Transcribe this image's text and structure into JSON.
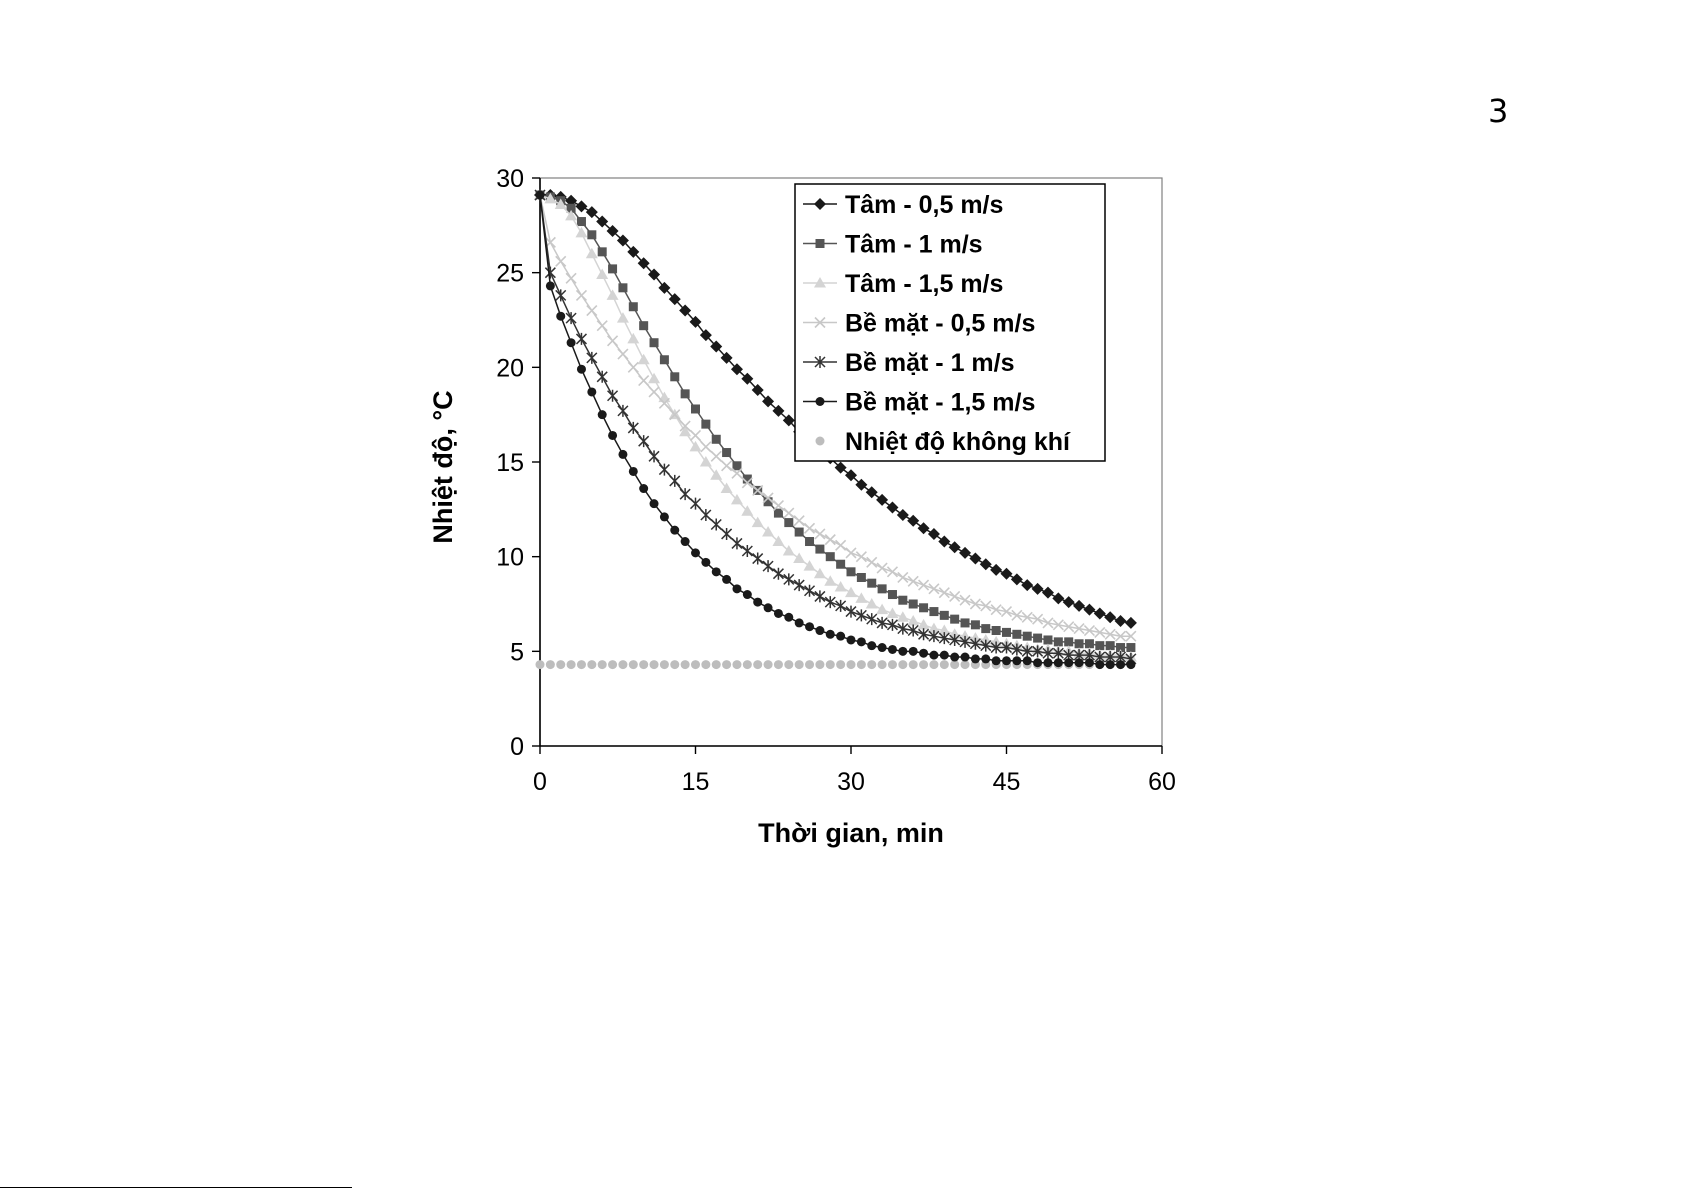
{
  "page": {
    "page_number": "3"
  },
  "chart_data": {
    "type": "line",
    "title": "",
    "xlabel": "Thời gian, min",
    "ylabel": "Nhiệt độ, °C",
    "xlim": [
      0,
      60
    ],
    "ylim": [
      0,
      30
    ],
    "x_ticks": [
      "0",
      "15",
      "30",
      "45",
      "60"
    ],
    "y_ticks": [
      "0",
      "5",
      "10",
      "15",
      "20",
      "25",
      "30"
    ],
    "grid": false,
    "legend_position": "top-right",
    "x_step": 1,
    "series": [
      {
        "name": "Tâm - 0,5 m/s",
        "marker": "diamond",
        "color": "#1a1a1a",
        "values": [
          29.1,
          29.1,
          29.0,
          28.8,
          28.5,
          28.2,
          27.7,
          27.2,
          26.7,
          26.1,
          25.5,
          24.9,
          24.2,
          23.6,
          23.0,
          22.4,
          21.7,
          21.1,
          20.5,
          19.9,
          19.4,
          18.8,
          18.2,
          17.7,
          17.2,
          16.6,
          16.1,
          15.7,
          15.2,
          14.7,
          14.3,
          13.8,
          13.4,
          13.0,
          12.6,
          12.2,
          11.9,
          11.5,
          11.2,
          10.8,
          10.5,
          10.2,
          9.9,
          9.6,
          9.3,
          9.1,
          8.8,
          8.5,
          8.3,
          8.1,
          7.8,
          7.6,
          7.4,
          7.2,
          7.0,
          6.8,
          6.6,
          6.5
        ]
      },
      {
        "name": "Tâm - 1 m/s",
        "marker": "square",
        "color": "#555555",
        "values": [
          29.1,
          29.0,
          28.8,
          28.4,
          27.7,
          27.0,
          26.1,
          25.2,
          24.2,
          23.2,
          22.2,
          21.3,
          20.4,
          19.5,
          18.6,
          17.8,
          17.0,
          16.2,
          15.5,
          14.8,
          14.1,
          13.5,
          12.9,
          12.3,
          11.8,
          11.3,
          10.8,
          10.4,
          10.0,
          9.6,
          9.2,
          8.9,
          8.6,
          8.3,
          8.0,
          7.7,
          7.5,
          7.3,
          7.1,
          6.9,
          6.7,
          6.5,
          6.4,
          6.2,
          6.1,
          6.0,
          5.9,
          5.8,
          5.7,
          5.6,
          5.5,
          5.5,
          5.4,
          5.4,
          5.3,
          5.3,
          5.2,
          5.2
        ]
      },
      {
        "name": "Tâm - 1,5 m/s",
        "marker": "triangle",
        "color": "#d4d4d4",
        "values": [
          29.1,
          28.9,
          28.6,
          28.0,
          27.1,
          26.0,
          24.9,
          23.8,
          22.6,
          21.5,
          20.4,
          19.4,
          18.4,
          17.5,
          16.6,
          15.8,
          15.0,
          14.3,
          13.6,
          13.0,
          12.4,
          11.8,
          11.3,
          10.8,
          10.3,
          9.9,
          9.5,
          9.1,
          8.7,
          8.4,
          8.1,
          7.8,
          7.5,
          7.2,
          7.0,
          6.8,
          6.6,
          6.4,
          6.2,
          6.1,
          5.9,
          5.8,
          5.7,
          5.6,
          5.5,
          5.4,
          5.3,
          5.2,
          5.1,
          5.1,
          5.0,
          5.0,
          4.9,
          4.9,
          4.8,
          4.8,
          4.8,
          4.7
        ]
      },
      {
        "name": "Bề mặt - 0,5 m/s",
        "marker": "x",
        "color": "#c8c8c8",
        "values": [
          29.1,
          26.6,
          25.6,
          24.7,
          23.8,
          23.0,
          22.2,
          21.4,
          20.7,
          20.0,
          19.3,
          18.7,
          18.1,
          17.5,
          16.9,
          16.4,
          15.8,
          15.3,
          14.8,
          14.4,
          13.9,
          13.5,
          13.1,
          12.7,
          12.3,
          11.9,
          11.5,
          11.2,
          10.9,
          10.6,
          10.2,
          10.0,
          9.7,
          9.4,
          9.2,
          8.9,
          8.7,
          8.5,
          8.3,
          8.1,
          7.9,
          7.7,
          7.5,
          7.4,
          7.2,
          7.1,
          6.9,
          6.8,
          6.7,
          6.5,
          6.4,
          6.3,
          6.2,
          6.1,
          6.0,
          5.9,
          5.8,
          5.8
        ]
      },
      {
        "name": "Bề mặt - 1 m/s",
        "marker": "star",
        "color": "#333333",
        "values": [
          29.1,
          25.0,
          23.8,
          22.6,
          21.5,
          20.5,
          19.5,
          18.5,
          17.7,
          16.8,
          16.1,
          15.3,
          14.6,
          14.0,
          13.3,
          12.8,
          12.2,
          11.7,
          11.2,
          10.7,
          10.3,
          9.9,
          9.5,
          9.1,
          8.8,
          8.5,
          8.2,
          7.9,
          7.6,
          7.4,
          7.1,
          6.9,
          6.7,
          6.5,
          6.4,
          6.2,
          6.1,
          5.9,
          5.8,
          5.7,
          5.6,
          5.5,
          5.4,
          5.3,
          5.2,
          5.2,
          5.1,
          5.0,
          5.0,
          4.9,
          4.9,
          4.8,
          4.8,
          4.8,
          4.7,
          4.7,
          4.7,
          4.6
        ]
      },
      {
        "name": "Bề mặt - 1,5 m/s",
        "marker": "circle",
        "color": "#1a1a1a",
        "values": [
          29.1,
          24.3,
          22.7,
          21.3,
          19.9,
          18.7,
          17.5,
          16.4,
          15.4,
          14.5,
          13.6,
          12.8,
          12.1,
          11.4,
          10.8,
          10.2,
          9.7,
          9.2,
          8.8,
          8.3,
          8.0,
          7.6,
          7.3,
          7.0,
          6.8,
          6.5,
          6.3,
          6.1,
          5.9,
          5.8,
          5.6,
          5.5,
          5.3,
          5.2,
          5.1,
          5.0,
          5.0,
          4.9,
          4.8,
          4.8,
          4.7,
          4.7,
          4.6,
          4.6,
          4.5,
          4.5,
          4.5,
          4.5,
          4.4,
          4.4,
          4.4,
          4.4,
          4.4,
          4.4,
          4.3,
          4.3,
          4.3,
          4.3
        ]
      },
      {
        "name": "Nhiệt độ không khí",
        "marker": "circle",
        "color": "#bdbdbd",
        "no_line": true,
        "values": [
          4.3,
          4.3,
          4.3,
          4.3,
          4.3,
          4.3,
          4.3,
          4.3,
          4.3,
          4.3,
          4.3,
          4.3,
          4.3,
          4.3,
          4.3,
          4.3,
          4.3,
          4.3,
          4.3,
          4.3,
          4.3,
          4.3,
          4.3,
          4.3,
          4.3,
          4.3,
          4.3,
          4.3,
          4.3,
          4.3,
          4.3,
          4.3,
          4.3,
          4.3,
          4.3,
          4.3,
          4.3,
          4.3,
          4.3,
          4.3,
          4.3,
          4.3,
          4.3,
          4.3,
          4.3,
          4.3,
          4.3,
          4.3,
          4.3,
          4.3,
          4.3,
          4.3,
          4.3,
          4.3,
          4.3,
          4.3,
          4.3,
          4.3
        ]
      }
    ]
  }
}
